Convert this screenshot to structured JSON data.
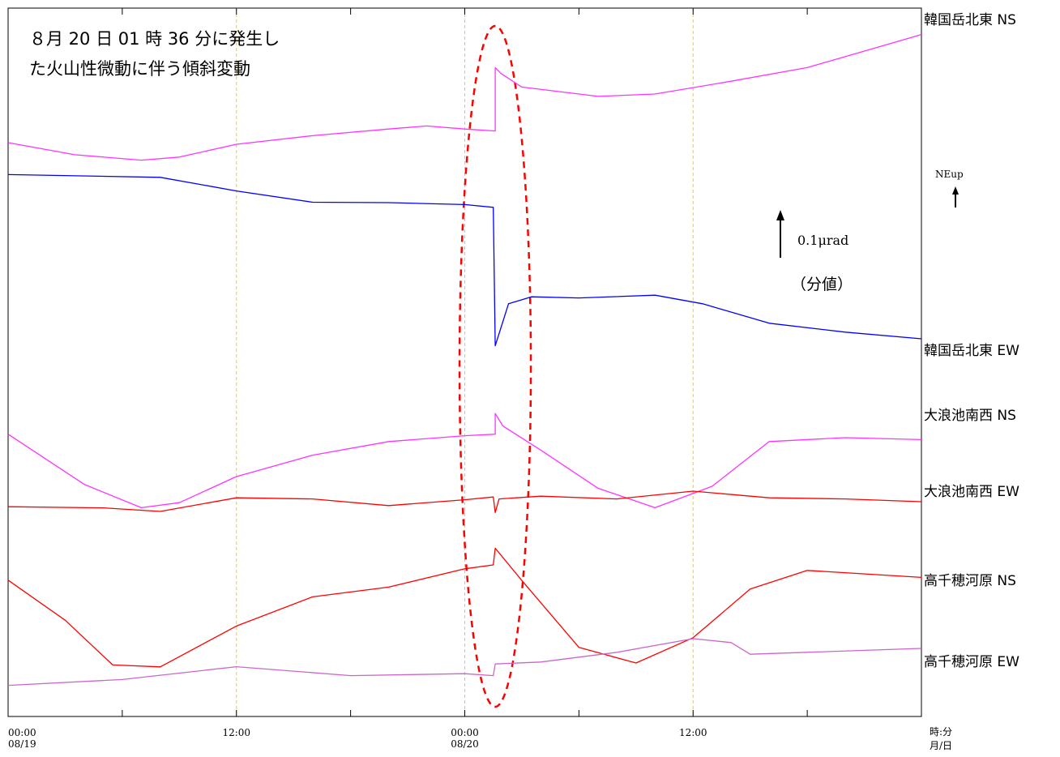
{
  "chart_data": {
    "type": "line",
    "title_lines": [
      "８月 20 日 01 時 36 分に発生し",
      "た火山性微動に伴う傾斜変動"
    ],
    "x_ticks": [
      {
        "hour": 0,
        "time": "00:00",
        "date": "08/19"
      },
      {
        "hour": 12,
        "time": "12:00",
        "date": ""
      },
      {
        "hour": 24,
        "time": "00:00",
        "date": "08/20"
      },
      {
        "hour": 36,
        "time": "12:00",
        "date": ""
      }
    ],
    "x_units": {
      "top": "時:分",
      "bottom": "月/日"
    },
    "xlim_hours": [
      0,
      48
    ],
    "grid_hours": [
      12,
      24,
      36
    ],
    "scale_bar": {
      "value": "0.1μrad",
      "note": "（分値）"
    },
    "direction_indicator": "NEup",
    "event_hour": 25.6,
    "series": [
      {
        "name": "韓国岳北東 NS",
        "color": "#ff33ff",
        "points": [
          [
            0,
            -0.23
          ],
          [
            3.5,
            -0.54
          ],
          [
            7,
            -0.68
          ],
          [
            9,
            -0.6
          ],
          [
            12,
            -0.27
          ],
          [
            16,
            -0.05
          ],
          [
            20,
            0.12
          ],
          [
            22,
            0.2
          ],
          [
            24,
            0.12
          ],
          [
            25.6,
            0.07
          ],
          [
            25.6,
            1.7
          ],
          [
            25.9,
            1.55
          ],
          [
            27,
            1.2
          ],
          [
            31,
            0.96
          ],
          [
            34,
            1.02
          ],
          [
            38,
            1.35
          ],
          [
            42,
            1.7
          ],
          [
            48,
            2.55
          ]
        ]
      },
      {
        "name": "韓国岳北東 EW",
        "color": "#0000ff",
        "points": [
          [
            0,
            -2.78
          ],
          [
            8,
            -2.85
          ],
          [
            12,
            -3.2
          ],
          [
            16,
            -3.49
          ],
          [
            20,
            -3.5
          ],
          [
            24,
            -3.55
          ],
          [
            25.5,
            -3.62
          ],
          [
            25.6,
            -7.18
          ],
          [
            26.3,
            -6.1
          ],
          [
            27.5,
            -5.92
          ],
          [
            30,
            -5.95
          ],
          [
            34,
            -5.88
          ],
          [
            36.5,
            -6.1
          ],
          [
            40,
            -6.6
          ],
          [
            44,
            -6.83
          ],
          [
            48,
            -7.0
          ]
        ]
      },
      {
        "name": "大浪池南西 NS",
        "color": "#ff33ff",
        "points": [
          [
            0,
            -0.41
          ],
          [
            4,
            -1.7
          ],
          [
            7,
            -2.3
          ],
          [
            9,
            -2.17
          ],
          [
            12,
            -1.5
          ],
          [
            16,
            -0.95
          ],
          [
            20,
            -0.6
          ],
          [
            24,
            -0.45
          ],
          [
            25.6,
            -0.41
          ],
          [
            25.6,
            0.12
          ],
          [
            26,
            -0.2
          ],
          [
            28,
            -0.82
          ],
          [
            31,
            -1.8
          ],
          [
            34,
            -2.3
          ],
          [
            37,
            -1.75
          ],
          [
            40,
            -0.6
          ],
          [
            44,
            -0.5
          ],
          [
            48,
            -0.55
          ]
        ]
      },
      {
        "name": "大浪池南西 EW",
        "color": "#ff0000",
        "points": [
          [
            0,
            -0.15
          ],
          [
            5,
            -0.18
          ],
          [
            8,
            -0.27
          ],
          [
            12,
            0.08
          ],
          [
            16,
            0.05
          ],
          [
            20,
            -0.12
          ],
          [
            24,
            0.03
          ],
          [
            25.5,
            0.1
          ],
          [
            25.6,
            -0.3
          ],
          [
            25.8,
            0.05
          ],
          [
            28,
            0.12
          ],
          [
            32,
            0.05
          ],
          [
            36,
            0.25
          ],
          [
            40,
            0.08
          ],
          [
            44,
            0.05
          ],
          [
            48,
            -0.02
          ]
        ]
      },
      {
        "name": "高千穂河原 NS",
        "color": "#ff0000",
        "points": [
          [
            0,
            0.13
          ],
          [
            3,
            -0.9
          ],
          [
            5.5,
            -2.05
          ],
          [
            8,
            -2.1
          ],
          [
            12,
            -1.05
          ],
          [
            16,
            -0.3
          ],
          [
            20,
            -0.05
          ],
          [
            24,
            0.42
          ],
          [
            25.5,
            0.52
          ],
          [
            25.6,
            0.95
          ],
          [
            27,
            0.12
          ],
          [
            30,
            -1.6
          ],
          [
            33,
            -2.0
          ],
          [
            36,
            -1.35
          ],
          [
            39,
            -0.1
          ],
          [
            42,
            0.38
          ],
          [
            48,
            0.2
          ]
        ]
      },
      {
        "name": "高千穂河原 EW",
        "color": "#cc66cc",
        "points": [
          [
            0,
            -0.2
          ],
          [
            6,
            -0.05
          ],
          [
            12,
            0.28
          ],
          [
            18,
            0.05
          ],
          [
            24,
            0.1
          ],
          [
            25.5,
            0.05
          ],
          [
            25.6,
            0.35
          ],
          [
            28,
            0.4
          ],
          [
            32,
            0.65
          ],
          [
            36,
            1.0
          ],
          [
            38,
            0.9
          ],
          [
            39,
            0.6
          ],
          [
            42,
            0.65
          ],
          [
            48,
            0.75
          ]
        ]
      }
    ]
  }
}
